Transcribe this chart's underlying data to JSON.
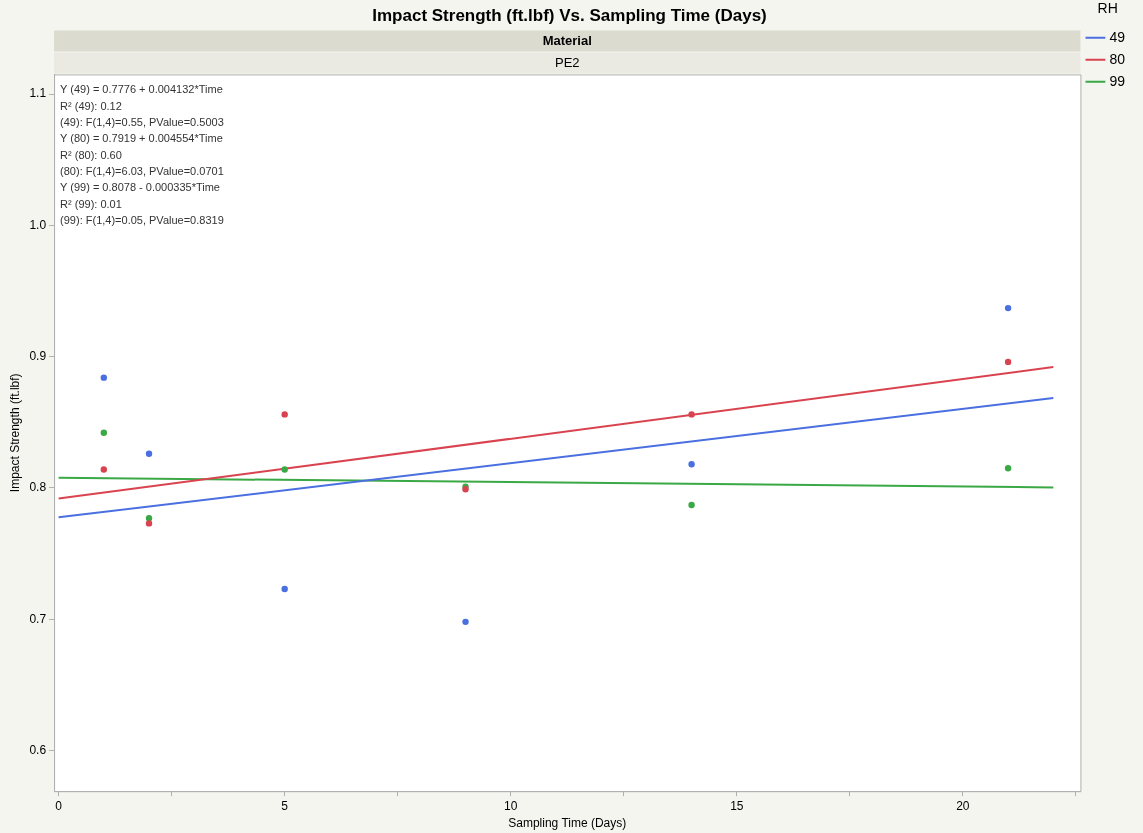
{
  "chart_data": {
    "type": "scatter",
    "title": "Impact Strength (ft.lbf) Vs. Sampling Time (Days)",
    "subtitle": "Material",
    "xlabel": "Sampling Time (Days)",
    "ylabel": "Impact Strength (ft.lbf)",
    "legend_title": "RH",
    "legend": "top right",
    "grid": false,
    "marker": "circle",
    "xlim": [
      -0.1,
      22.6
    ],
    "xticks": [
      0,
      {
        "value": 2.5,
        "label": null
      },
      5,
      {
        "value": 7.5,
        "label": null
      },
      10,
      {
        "value": 12.5,
        "label": null
      },
      15,
      {
        "value": 17.5,
        "label": null
      },
      20,
      {
        "value": 22.5,
        "label": null
      }
    ],
    "ylim": [
      0.569,
      1.115
    ],
    "yticks": [
      0.6,
      0.7,
      0.8,
      0.9,
      {
        "value": 1,
        "label": "1.0"
      },
      1.1
    ],
    "annotations": [
      "PE2",
      "Y (49) = 0.7776 + 0.004132*Time",
      "R² (49): 0.12",
      "(49): F(1,4)=0.55, PValue=0.5003",
      "Y (80) = 0.7919 + 0.004554*Time",
      "R² (80): 0.60",
      "(80): F(1,4)=6.03, PValue=0.0701",
      "Y (99) = 0.8078 - 0.000335*Time",
      "R² (99): 0.01",
      "(99): F(1,4)=0.05, PValue=0.8319"
    ],
    "series": [
      {
        "type": "scatter",
        "color": "#4a6fe0",
        "x": [
          1,
          2,
          5,
          9,
          14,
          21
        ],
        "values": [
          0.884,
          0.826,
          0.723,
          0.698,
          0.818,
          0.937
        ]
      },
      {
        "type": "scatter",
        "color": "#d9434f",
        "x": [
          1,
          2,
          5,
          9,
          14,
          21
        ],
        "values": [
          0.814,
          0.773,
          0.856,
          0.799,
          0.856,
          0.896
        ]
      },
      {
        "type": "scatter",
        "color": "#3aa845",
        "x": [
          1,
          2,
          5,
          9,
          14,
          21
        ],
        "values": [
          0.842,
          0.777,
          0.814,
          0.801,
          0.787,
          0.815
        ]
      },
      {
        "type": "line",
        "name": "49",
        "color": "#4a6fe0",
        "marker": "none",
        "x": [
          0,
          22
        ],
        "values": [
          0.7776,
          0.8685
        ]
      },
      {
        "type": "line",
        "name": "80",
        "color": "#d9434f",
        "marker": "none",
        "x": [
          0,
          22
        ],
        "values": [
          0.7919,
          0.8921
        ]
      },
      {
        "type": "line",
        "name": "99",
        "color": "#3aa845",
        "marker": "none",
        "x": [
          0,
          22
        ],
        "values": [
          0.8078,
          0.8004
        ]
      }
    ]
  }
}
